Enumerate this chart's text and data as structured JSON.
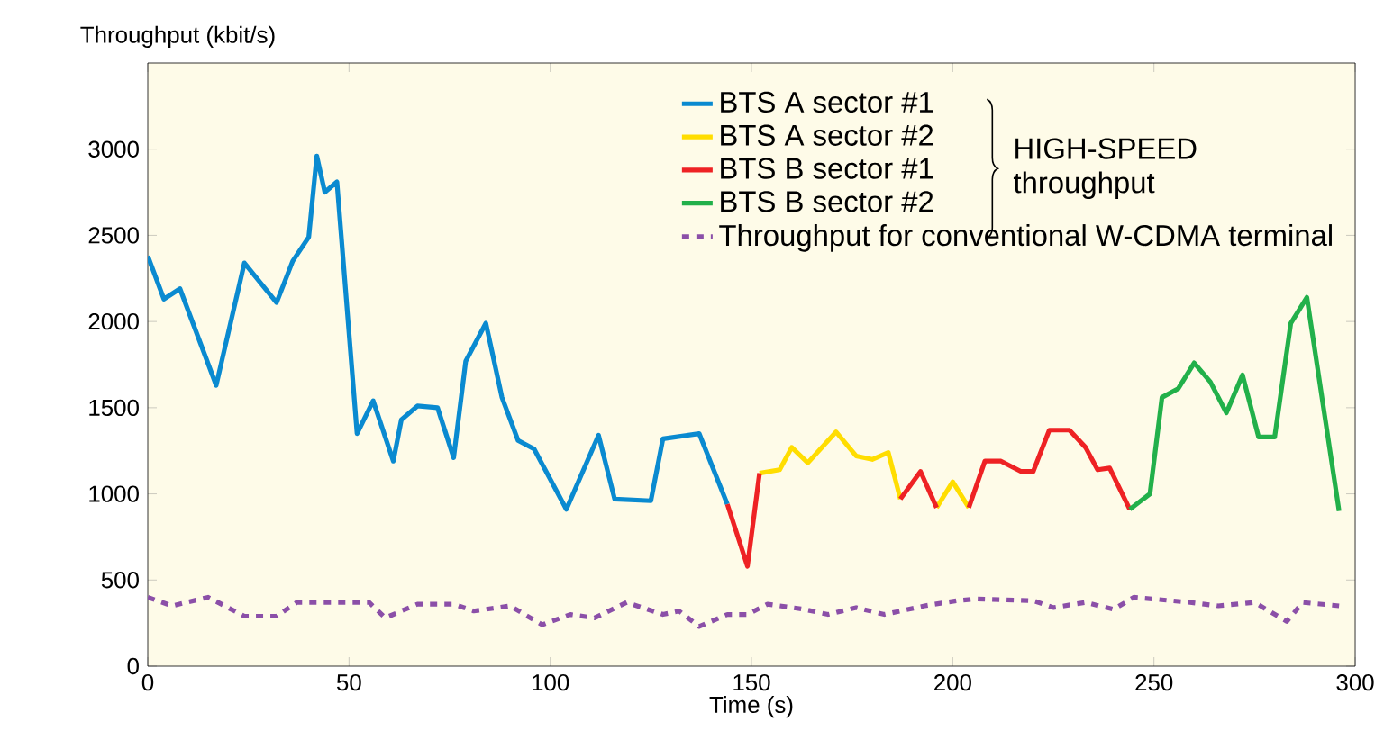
{
  "chart_data": {
    "type": "line",
    "xlabel": "Time (s)",
    "ylabel": "Throughput (kbit/s)",
    "xlim": [
      0,
      300
    ],
    "ylim": [
      0,
      3500
    ],
    "xticks": [
      0,
      50,
      100,
      150,
      200,
      250,
      300
    ],
    "yticks": [
      0,
      500,
      1000,
      1500,
      2000,
      2500,
      3000
    ],
    "legend": "top right",
    "annotations": [
      "HIGH-SPEED throughput"
    ],
    "series": [
      {
        "name": "BTS A sector #1",
        "color": "#0a8ad0",
        "x": [
          0,
          4,
          8,
          17,
          24,
          32,
          36,
          40,
          42,
          44,
          47,
          52,
          56,
          61,
          63,
          67,
          72,
          76,
          79,
          84,
          88,
          92,
          96,
          104,
          112,
          116,
          125,
          128,
          137,
          144
        ],
        "values": [
          2380,
          2130,
          2190,
          1630,
          2340,
          2110,
          2350,
          2490,
          2960,
          2750,
          2810,
          1350,
          1540,
          1190,
          1430,
          1510,
          1500,
          1210,
          1770,
          1990,
          1560,
          1310,
          1260,
          910,
          1340,
          970,
          960,
          1320,
          1350,
          940
        ]
      },
      {
        "name": "BTS A sector #2",
        "color": "#ffdd00",
        "x": [
          152,
          157,
          160,
          164,
          171,
          176,
          180,
          184,
          187,
          190,
          196,
          200,
          204
        ],
        "values": [
          1120,
          1140,
          1270,
          1180,
          1360,
          1220,
          1200,
          1240,
          970,
          null,
          920,
          1070,
          920
        ]
      },
      {
        "name": "BTS B sector #1",
        "color": "#ee2224",
        "x": [
          144,
          149,
          152,
          170,
          187,
          192,
          196,
          200,
          204,
          208,
          212,
          217,
          220,
          224,
          229,
          233,
          236,
          239,
          244
        ],
        "values": [
          940,
          580,
          1120,
          null,
          970,
          1130,
          920,
          null,
          920,
          1190,
          1190,
          1130,
          1130,
          1370,
          1370,
          1270,
          1140,
          1150,
          910
        ]
      },
      {
        "name": "BTS B sector #2",
        "color": "#22b04a",
        "x": [
          244,
          249,
          252,
          256,
          260,
          264,
          268,
          272,
          276,
          280,
          284,
          288,
          296
        ],
        "values": [
          910,
          1000,
          1560,
          1610,
          1760,
          1650,
          1470,
          1690,
          1330,
          1330,
          1990,
          2140,
          900
        ]
      },
      {
        "name": "Throughput for conventional W-CDMA terminal",
        "color": "#8b4fa8",
        "line_style": "dotted",
        "x": [
          0,
          6,
          15,
          24,
          32,
          37,
          45,
          55,
          59,
          67,
          76,
          81,
          90,
          98,
          105,
          111,
          119,
          128,
          132,
          137,
          144,
          149,
          154,
          163,
          169,
          176,
          183,
          193,
          201,
          206,
          220,
          225,
          233,
          240,
          245,
          259,
          266,
          275,
          283,
          287,
          296
        ],
        "values": [
          400,
          350,
          400,
          290,
          290,
          370,
          370,
          370,
          280,
          360,
          360,
          320,
          350,
          240,
          300,
          280,
          370,
          300,
          320,
          230,
          300,
          300,
          360,
          330,
          300,
          340,
          300,
          350,
          380,
          390,
          380,
          340,
          370,
          330,
          400,
          370,
          350,
          370,
          260,
          370,
          350
        ]
      }
    ]
  }
}
